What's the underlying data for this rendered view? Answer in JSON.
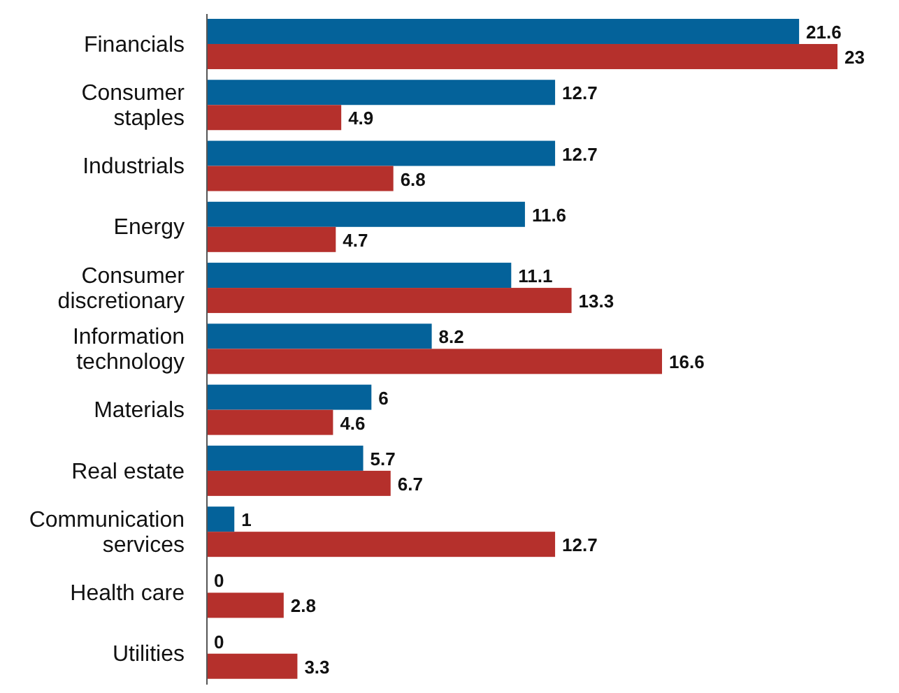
{
  "chart_data": {
    "type": "bar",
    "orientation": "horizontal",
    "data_labels": true,
    "grid": false,
    "legend": false,
    "categories": [
      "Financials",
      "Consumer staples",
      "Industrials",
      "Energy",
      "Consumer discretionary",
      "Information technology",
      "Materials",
      "Real estate",
      "Communication services",
      "Health care",
      "Utilities"
    ],
    "series": [
      {
        "color": "#04629a",
        "values": [
          21.6,
          12.7,
          12.7,
          11.6,
          11.1,
          8.2,
          6,
          5.7,
          1,
          0,
          0
        ]
      },
      {
        "color": "#b5302c",
        "values": [
          23,
          4.9,
          6.8,
          4.7,
          13.3,
          16.6,
          4.6,
          6.7,
          12.7,
          2.8,
          3.3
        ]
      }
    ]
  }
}
